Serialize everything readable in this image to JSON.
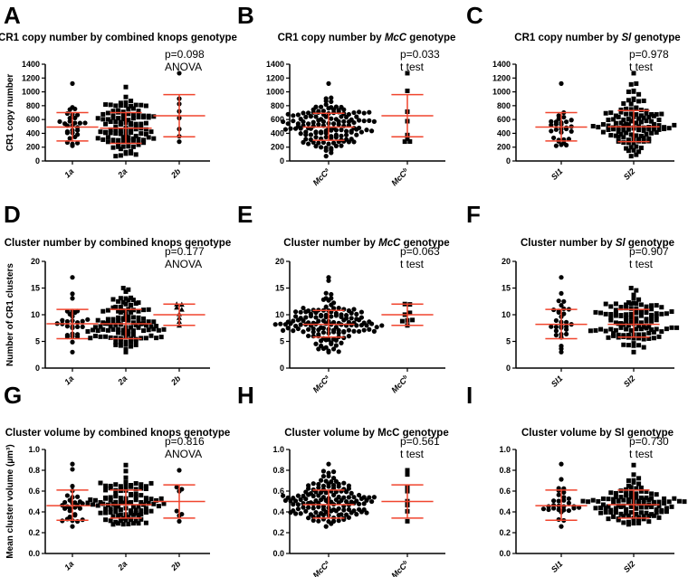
{
  "chart_data": [
    {
      "type": "scatter",
      "panel": "A",
      "title": [
        "CR1 copy number by combined knops genotype",
        "",
        ""
      ],
      "ylabel": "CR1 copy number",
      "ylim": [
        0,
        1400
      ],
      "yticks": [
        "0",
        "200",
        "400",
        "600",
        "800",
        "1000",
        "1200",
        "1400"
      ],
      "stat": [
        "p=0.098",
        "ANOVA"
      ],
      "groups": [
        {
          "label": "1a",
          "sup": "",
          "marker": "circle",
          "n": 30,
          "mean": 490,
          "lower": 290,
          "upper": 700,
          "min": 220,
          "max": 1120
        },
        {
          "label": "2a",
          "sup": "",
          "marker": "square",
          "n": 110,
          "mean": 475,
          "lower": 255,
          "upper": 700,
          "min": 70,
          "max": 1070
        },
        {
          "label": "2b",
          "sup": "",
          "marker": "circle",
          "n": 8,
          "mean": 655,
          "lower": 350,
          "upper": 960,
          "min": 280,
          "max": 1270
        }
      ]
    },
    {
      "type": "scatter",
      "panel": "B",
      "title": [
        "CR1 copy number by ",
        "McC",
        " genotype"
      ],
      "ylabel": "",
      "ylim": [
        0,
        1400
      ],
      "yticks": [
        "0",
        "200",
        "400",
        "600",
        "800",
        "1000",
        "1200",
        "1400"
      ],
      "stat": [
        "p=0.033",
        "t test"
      ],
      "groups": [
        {
          "label": "McC",
          "sup": "a",
          "marker": "circle",
          "n": 140,
          "mean": 490,
          "lower": 300,
          "upper": 690,
          "min": 70,
          "max": 1120
        },
        {
          "label": "McC",
          "sup": "b",
          "marker": "square",
          "n": 8,
          "mean": 655,
          "lower": 350,
          "upper": 960,
          "min": 280,
          "max": 1270
        }
      ]
    },
    {
      "type": "scatter",
      "panel": "C",
      "title": [
        "CR1 copy number by ",
        "Sl",
        " genotype"
      ],
      "ylabel": "",
      "ylim": [
        0,
        1400
      ],
      "yticks": [
        "0",
        "200",
        "400",
        "600",
        "800",
        "1000",
        "1200",
        "1400"
      ],
      "stat": [
        "p=0.978",
        "t test"
      ],
      "groups": [
        {
          "label": "Sl1",
          "sup": "",
          "marker": "circle",
          "n": 30,
          "mean": 490,
          "lower": 290,
          "upper": 700,
          "min": 220,
          "max": 1120
        },
        {
          "label": "Sl2",
          "sup": "",
          "marker": "square",
          "n": 115,
          "mean": 495,
          "lower": 280,
          "upper": 730,
          "min": 70,
          "max": 1270
        }
      ]
    },
    {
      "type": "scatter",
      "panel": "D",
      "title": [
        "Cluster number by combined knops genotype",
        "",
        ""
      ],
      "ylabel": "Number of CR1 clusters",
      "ylim": [
        0,
        20
      ],
      "yticks": [
        "0",
        "5",
        "10",
        "15",
        "20"
      ],
      "stat": [
        "p=0.177",
        "ANOVA"
      ],
      "groups": [
        {
          "label": "1a",
          "sup": "",
          "marker": "circle",
          "n": 30,
          "mean": 8.3,
          "lower": 5.5,
          "upper": 11,
          "min": 3,
          "max": 17
        },
        {
          "label": "2a",
          "sup": "",
          "marker": "square",
          "n": 110,
          "mean": 8.3,
          "lower": 5.5,
          "upper": 11,
          "min": 3,
          "max": 15
        },
        {
          "label": "2b",
          "sup": "",
          "marker": "triangle",
          "n": 8,
          "mean": 10,
          "lower": 8,
          "upper": 12,
          "min": 8,
          "max": 12
        }
      ]
    },
    {
      "type": "scatter",
      "panel": "E",
      "title": [
        "Cluster number by ",
        "McC",
        " genotype"
      ],
      "ylabel": "",
      "ylim": [
        0,
        20
      ],
      "yticks": [
        "0",
        "5",
        "10",
        "15",
        "20"
      ],
      "stat": [
        "p=0.063",
        "t test"
      ],
      "groups": [
        {
          "label": "McC",
          "sup": "a",
          "marker": "circle",
          "n": 140,
          "mean": 8.2,
          "lower": 5.8,
          "upper": 10.8,
          "min": 3,
          "max": 17
        },
        {
          "label": "McC",
          "sup": "b",
          "marker": "square",
          "n": 8,
          "mean": 10,
          "lower": 8,
          "upper": 12,
          "min": 8,
          "max": 12
        }
      ]
    },
    {
      "type": "scatter",
      "panel": "F",
      "title": [
        "Cluster number by ",
        "Sl",
        " genotype"
      ],
      "ylabel": "",
      "ylim": [
        0,
        20
      ],
      "yticks": [
        "0",
        "5",
        "10",
        "15",
        "20"
      ],
      "stat": [
        "p=0.907",
        "t test"
      ],
      "groups": [
        {
          "label": "Sl1",
          "sup": "",
          "marker": "circle",
          "n": 30,
          "mean": 8.2,
          "lower": 5.5,
          "upper": 11,
          "min": 3,
          "max": 17
        },
        {
          "label": "Sl2",
          "sup": "",
          "marker": "square",
          "n": 115,
          "mean": 8.2,
          "lower": 5.8,
          "upper": 11,
          "min": 3,
          "max": 15
        }
      ]
    },
    {
      "type": "scatter",
      "panel": "G",
      "title": [
        "Cluster volume by combined knops genotype",
        "",
        ""
      ],
      "ylabel": "Mean cluster volume (µm³)",
      "ylim": [
        0,
        1
      ],
      "yticks": [
        "0.0",
        "0.2",
        "0.4",
        "0.6",
        "0.8",
        "1.0"
      ],
      "stat": [
        "p=0.816",
        "ANOVA"
      ],
      "groups": [
        {
          "label": "1a",
          "sup": "",
          "marker": "circle",
          "n": 30,
          "mean": 0.46,
          "lower": 0.32,
          "upper": 0.61,
          "min": 0.26,
          "max": 0.86
        },
        {
          "label": "2a",
          "sup": "",
          "marker": "square",
          "n": 110,
          "mean": 0.47,
          "lower": 0.34,
          "upper": 0.61,
          "min": 0.28,
          "max": 0.85
        },
        {
          "label": "2b",
          "sup": "",
          "marker": "circle",
          "n": 8,
          "mean": 0.5,
          "lower": 0.34,
          "upper": 0.66,
          "min": 0.31,
          "max": 0.8
        }
      ]
    },
    {
      "type": "scatter",
      "panel": "H",
      "title": [
        "Cluster volume by McC genotype",
        "",
        ""
      ],
      "ylabel": "",
      "ylim": [
        0,
        1
      ],
      "yticks": [
        "0.0",
        "0.2",
        "0.4",
        "0.6",
        "0.8",
        "1.0"
      ],
      "stat": [
        "p=0.561",
        "t test"
      ],
      "groups": [
        {
          "label": "McC",
          "sup": "a",
          "marker": "circle",
          "n": 140,
          "mean": 0.47,
          "lower": 0.34,
          "upper": 0.61,
          "min": 0.26,
          "max": 0.86
        },
        {
          "label": "McC",
          "sup": "b",
          "marker": "square",
          "n": 8,
          "mean": 0.5,
          "lower": 0.34,
          "upper": 0.66,
          "min": 0.31,
          "max": 0.8
        }
      ]
    },
    {
      "type": "scatter",
      "panel": "I",
      "title": [
        "Cluster volume by Sl genotype",
        "",
        ""
      ],
      "ylabel": "",
      "ylim": [
        0,
        1
      ],
      "yticks": [
        "0.0",
        "0.2",
        "0.4",
        "0.6",
        "0.8",
        "1.0"
      ],
      "stat": [
        "p=0.730",
        "t test"
      ],
      "groups": [
        {
          "label": "Sl1",
          "sup": "",
          "marker": "circle",
          "n": 30,
          "mean": 0.46,
          "lower": 0.32,
          "upper": 0.61,
          "min": 0.26,
          "max": 0.86
        },
        {
          "label": "Sl2",
          "sup": "",
          "marker": "square",
          "n": 115,
          "mean": 0.47,
          "lower": 0.34,
          "upper": 0.61,
          "min": 0.28,
          "max": 0.85
        }
      ]
    }
  ],
  "colors": {
    "points": "#000000",
    "error_bars": "#f0452e",
    "axis": "#000000"
  }
}
